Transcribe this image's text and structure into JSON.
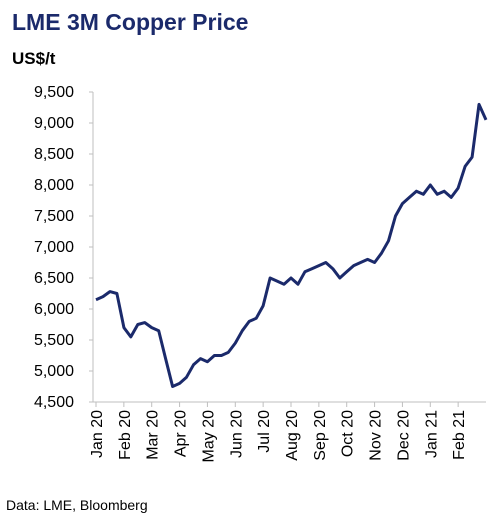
{
  "chart_data": {
    "type": "line",
    "title": "LME 3M Copper Price",
    "y_label": "US$/t",
    "source": "Data: LME, Bloomberg",
    "categories": [
      "Jan 20",
      null,
      null,
      null,
      "Feb 20",
      null,
      null,
      null,
      "Mar 20",
      null,
      null,
      null,
      "Apr 20",
      null,
      null,
      null,
      "May 20",
      null,
      null,
      null,
      "Jun 20",
      null,
      null,
      null,
      "Jul 20",
      null,
      null,
      null,
      "Aug 20",
      null,
      null,
      null,
      "Sep 20",
      null,
      null,
      null,
      "Oct 20",
      null,
      null,
      null,
      "Nov 20",
      null,
      null,
      null,
      "Dec 20",
      null,
      null,
      null,
      "Jan 21",
      null,
      null,
      null,
      "Feb 21",
      null,
      null,
      null,
      null
    ],
    "series": [
      {
        "name": "LME 3M Copper",
        "color": "#1b2a6b",
        "values": [
          6150,
          6200,
          6280,
          6250,
          5700,
          5550,
          5750,
          5780,
          5700,
          5650,
          5200,
          4750,
          4800,
          4900,
          5100,
          5200,
          5150,
          5250,
          5250,
          5300,
          5450,
          5650,
          5800,
          5850,
          6050,
          6500,
          6450,
          6400,
          6500,
          6400,
          6600,
          6650,
          6700,
          6750,
          6650,
          6500,
          6600,
          6700,
          6750,
          6800,
          6750,
          6900,
          7100,
          7500,
          7700,
          7800,
          7900,
          7850,
          8000,
          7850,
          7900,
          7800,
          7950,
          8300,
          8450,
          9300,
          9050
        ]
      }
    ],
    "ylim": [
      4500,
      9500
    ],
    "yticks": [
      {
        "value": 4500,
        "label": "4,500"
      },
      {
        "value": 5000,
        "label": "5,000"
      },
      {
        "value": 5500,
        "label": "5,500"
      },
      {
        "value": 6000,
        "label": "6,000"
      },
      {
        "value": 6500,
        "label": "6,500"
      },
      {
        "value": 7000,
        "label": "7,000"
      },
      {
        "value": 7500,
        "label": "7,500"
      },
      {
        "value": 8000,
        "label": "8,000"
      },
      {
        "value": 8500,
        "label": "8,500"
      },
      {
        "value": 9000,
        "label": "9,000"
      },
      {
        "value": 9500,
        "label": "9,500"
      }
    ],
    "grid": false
  }
}
